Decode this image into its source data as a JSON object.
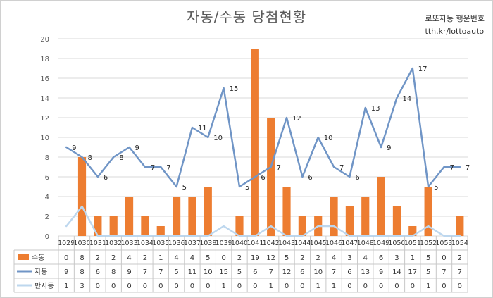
{
  "title": "자동/수동 당첨현황",
  "watermark": {
    "line1": "로또자동 행운번호",
    "line2": "tth.kr/lottoauto"
  },
  "colors": {
    "manual": "#ed7d31",
    "auto": "#7095c6",
    "semi": "#bdd7ee",
    "grid": "#d9d9d9",
    "text": "#595959"
  },
  "chart_data": {
    "type": "bar",
    "title": "자동/수동 당첨현황",
    "xlabel": "",
    "ylabel": "",
    "ylim": [
      0,
      20
    ],
    "yticks": [
      0,
      2,
      4,
      6,
      8,
      10,
      12,
      14,
      16,
      18,
      20
    ],
    "grid": "horizontal",
    "legend": "data-table",
    "categories": [
      "1029",
      "1030",
      "1031",
      "1032",
      "1033",
      "1034",
      "1035",
      "1036",
      "1037",
      "1038",
      "1039",
      "1040",
      "1041",
      "1042",
      "1043",
      "1044",
      "1045",
      "1046",
      "1047",
      "1048",
      "1049",
      "1050",
      "1051",
      "1052",
      "1053",
      "1054"
    ],
    "series": [
      {
        "name": "수동",
        "type": "bar",
        "color": "#ed7d31",
        "values": [
          0,
          8,
          2,
          2,
          4,
          2,
          1,
          4,
          4,
          5,
          0,
          2,
          19,
          12,
          5,
          2,
          2,
          4,
          3,
          4,
          6,
          3,
          1,
          5,
          0,
          2
        ]
      },
      {
        "name": "자동",
        "type": "line",
        "color": "#7095c6",
        "values": [
          9,
          8,
          6,
          8,
          9,
          7,
          7,
          5,
          11,
          10,
          15,
          5,
          6,
          7,
          12,
          6,
          10,
          7,
          6,
          13,
          9,
          14,
          17,
          5,
          7,
          7
        ]
      },
      {
        "name": "반자동",
        "type": "line",
        "color": "#bdd7ee",
        "values": [
          1,
          3,
          0,
          0,
          0,
          0,
          0,
          0,
          0,
          0,
          1,
          0,
          0,
          1,
          0,
          0,
          1,
          1,
          0,
          0,
          0,
          0,
          0,
          1,
          0,
          0
        ]
      }
    ]
  }
}
